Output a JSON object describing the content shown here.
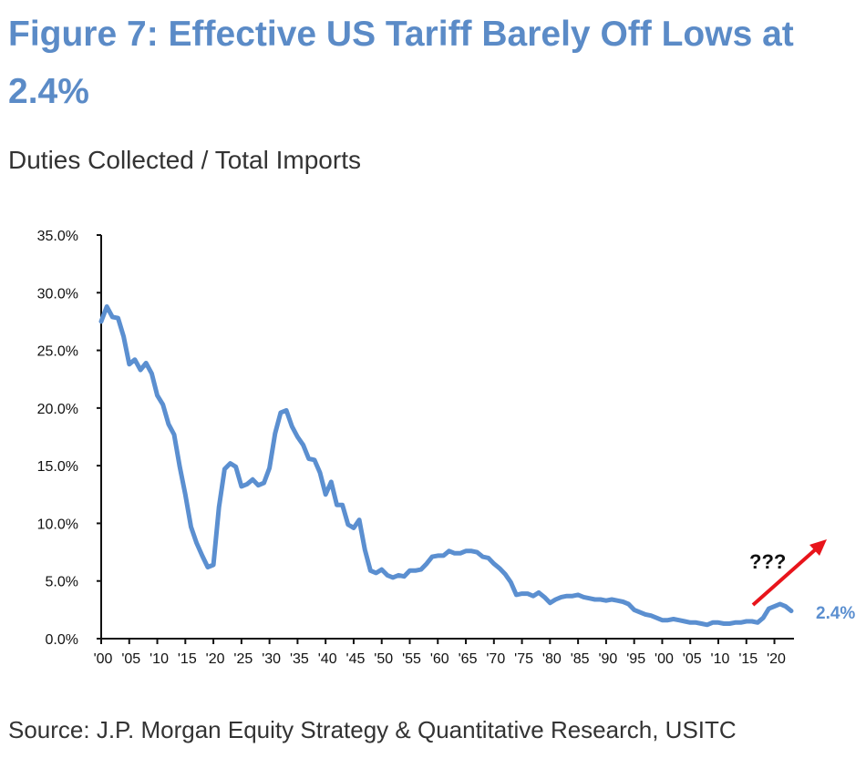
{
  "title": "Figure 7: Effective US Tariff Barely Off Lows at 2.4%",
  "subtitle": "Duties Collected / Total Imports",
  "source": "Source: J.P. Morgan Equity Strategy & Quantitative Research, USITC",
  "colors": {
    "line": "#5b8fd0",
    "title": "#5b8bc7",
    "arrow": "#e8141b"
  },
  "chart_data": {
    "type": "line",
    "title": "Figure 7: Effective US Tariff Barely Off Lows at 2.4%",
    "ylabel": "Duties Collected / Total Imports",
    "xlabel": "",
    "xlim": [
      1900,
      2023
    ],
    "ylim": [
      0,
      35
    ],
    "yticks": [
      "0.0%",
      "5.0%",
      "10.0%",
      "15.0%",
      "20.0%",
      "25.0%",
      "30.0%",
      "35.0%"
    ],
    "xticks": [
      "'00",
      "'05",
      "'10",
      "'15",
      "'20",
      "'25",
      "'30",
      "'35",
      "'40",
      "'45",
      "'50",
      "'55",
      "'60",
      "'65",
      "'70",
      "'75",
      "'80",
      "'85",
      "'90",
      "'95",
      "'00",
      "'05",
      "'10",
      "'15",
      "'20"
    ],
    "grid": false,
    "end_label": "2.4%",
    "annotation": "???",
    "series": [
      {
        "name": "Effective US Tariff",
        "x_start": 1900,
        "values": [
          27.5,
          28.8,
          27.9,
          27.8,
          26.2,
          23.8,
          24.2,
          23.3,
          23.9,
          23.0,
          21.1,
          20.3,
          18.6,
          17.7,
          14.9,
          12.5,
          9.7,
          8.3,
          7.2,
          6.2,
          6.4,
          11.4,
          14.7,
          15.2,
          14.9,
          13.2,
          13.4,
          13.8,
          13.3,
          13.5,
          14.8,
          17.8,
          19.6,
          19.8,
          18.4,
          17.5,
          16.8,
          15.6,
          15.5,
          14.4,
          12.5,
          13.6,
          11.6,
          11.6,
          9.9,
          9.6,
          10.3,
          7.7,
          5.9,
          5.7,
          6.0,
          5.5,
          5.3,
          5.5,
          5.4,
          5.9,
          5.9,
          6.0,
          6.5,
          7.1,
          7.2,
          7.2,
          7.6,
          7.4,
          7.4,
          7.6,
          7.6,
          7.5,
          7.1,
          7.0,
          6.5,
          6.1,
          5.6,
          4.9,
          3.8,
          3.9,
          3.9,
          3.7,
          4.0,
          3.6,
          3.1,
          3.4,
          3.6,
          3.7,
          3.7,
          3.8,
          3.6,
          3.5,
          3.4,
          3.4,
          3.3,
          3.4,
          3.3,
          3.2,
          3.0,
          2.5,
          2.3,
          2.1,
          2.0,
          1.8,
          1.6,
          1.6,
          1.7,
          1.6,
          1.5,
          1.4,
          1.4,
          1.3,
          1.2,
          1.4,
          1.4,
          1.3,
          1.3,
          1.4,
          1.4,
          1.5,
          1.5,
          1.4,
          1.8,
          2.6,
          2.8,
          3.0,
          2.8,
          2.4
        ]
      }
    ]
  }
}
